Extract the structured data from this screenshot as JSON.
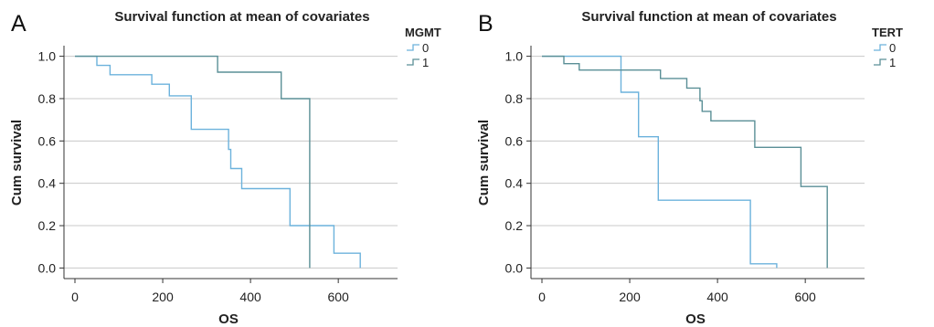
{
  "chart_data": [
    {
      "type": "line",
      "panel_letter": "A",
      "title": "Survival function at mean of covariates",
      "xlabel": "OS",
      "ylabel": "Cum survival",
      "xlim": [
        -25,
        735
      ],
      "ylim": [
        -0.05,
        1.05
      ],
      "xticks": [
        0,
        200,
        400,
        600
      ],
      "yticks": [
        0.0,
        0.2,
        0.4,
        0.6,
        0.8,
        1.0
      ],
      "ytick_labels": [
        "0.0",
        "0.2",
        "0.4",
        "0.6",
        "0.8",
        "1.0"
      ],
      "grid": "horizontal",
      "legend_position": "right",
      "legend_title": "MGMT",
      "series": [
        {
          "name": "0",
          "color": "#6cb2dc",
          "step": true,
          "points": [
            [
              0,
              1.0
            ],
            [
              50,
              1.0
            ],
            [
              50,
              0.957
            ],
            [
              80,
              0.957
            ],
            [
              80,
              0.913
            ],
            [
              175,
              0.913
            ],
            [
              175,
              0.868
            ],
            [
              215,
              0.868
            ],
            [
              215,
              0.813
            ],
            [
              265,
              0.813
            ],
            [
              265,
              0.655
            ],
            [
              350,
              0.655
            ],
            [
              350,
              0.56
            ],
            [
              355,
              0.56
            ],
            [
              355,
              0.47
            ],
            [
              380,
              0.47
            ],
            [
              380,
              0.375
            ],
            [
              490,
              0.375
            ],
            [
              490,
              0.2
            ],
            [
              590,
              0.2
            ],
            [
              590,
              0.07
            ],
            [
              650,
              0.07
            ],
            [
              650,
              0.0
            ]
          ]
        },
        {
          "name": "1",
          "color": "#5a8f96",
          "step": true,
          "points": [
            [
              0,
              1.0
            ],
            [
              325,
              1.0
            ],
            [
              325,
              0.925
            ],
            [
              470,
              0.925
            ],
            [
              470,
              0.8
            ],
            [
              535,
              0.8
            ],
            [
              535,
              0.0
            ]
          ]
        }
      ]
    },
    {
      "type": "line",
      "panel_letter": "B",
      "title": "Survival function at mean of covariates",
      "xlabel": "OS",
      "ylabel": "Cum survival",
      "xlim": [
        -25,
        735
      ],
      "ylim": [
        -0.05,
        1.05
      ],
      "xticks": [
        0,
        200,
        400,
        600
      ],
      "yticks": [
        0.0,
        0.2,
        0.4,
        0.6,
        0.8,
        1.0
      ],
      "ytick_labels": [
        "0.0",
        "0.2",
        "0.4",
        "0.6",
        "0.8",
        "1.0"
      ],
      "grid": "horizontal",
      "legend_position": "right",
      "legend_title": "TERT",
      "series": [
        {
          "name": "0",
          "color": "#6cb2dc",
          "step": true,
          "points": [
            [
              0,
              1.0
            ],
            [
              180,
              1.0
            ],
            [
              180,
              0.83
            ],
            [
              220,
              0.83
            ],
            [
              220,
              0.62
            ],
            [
              265,
              0.62
            ],
            [
              265,
              0.32
            ],
            [
              475,
              0.32
            ],
            [
              475,
              0.02
            ],
            [
              535,
              0.02
            ],
            [
              535,
              0.0
            ]
          ]
        },
        {
          "name": "1",
          "color": "#5a8f96",
          "step": true,
          "points": [
            [
              0,
              1.0
            ],
            [
              50,
              1.0
            ],
            [
              50,
              0.965
            ],
            [
              85,
              0.965
            ],
            [
              85,
              0.935
            ],
            [
              270,
              0.935
            ],
            [
              270,
              0.895
            ],
            [
              330,
              0.895
            ],
            [
              330,
              0.85
            ],
            [
              360,
              0.85
            ],
            [
              360,
              0.79
            ],
            [
              365,
              0.79
            ],
            [
              365,
              0.74
            ],
            [
              385,
              0.74
            ],
            [
              385,
              0.695
            ],
            [
              485,
              0.695
            ],
            [
              485,
              0.57
            ],
            [
              590,
              0.57
            ],
            [
              590,
              0.385
            ],
            [
              650,
              0.385
            ],
            [
              650,
              0.0
            ]
          ]
        }
      ]
    }
  ]
}
